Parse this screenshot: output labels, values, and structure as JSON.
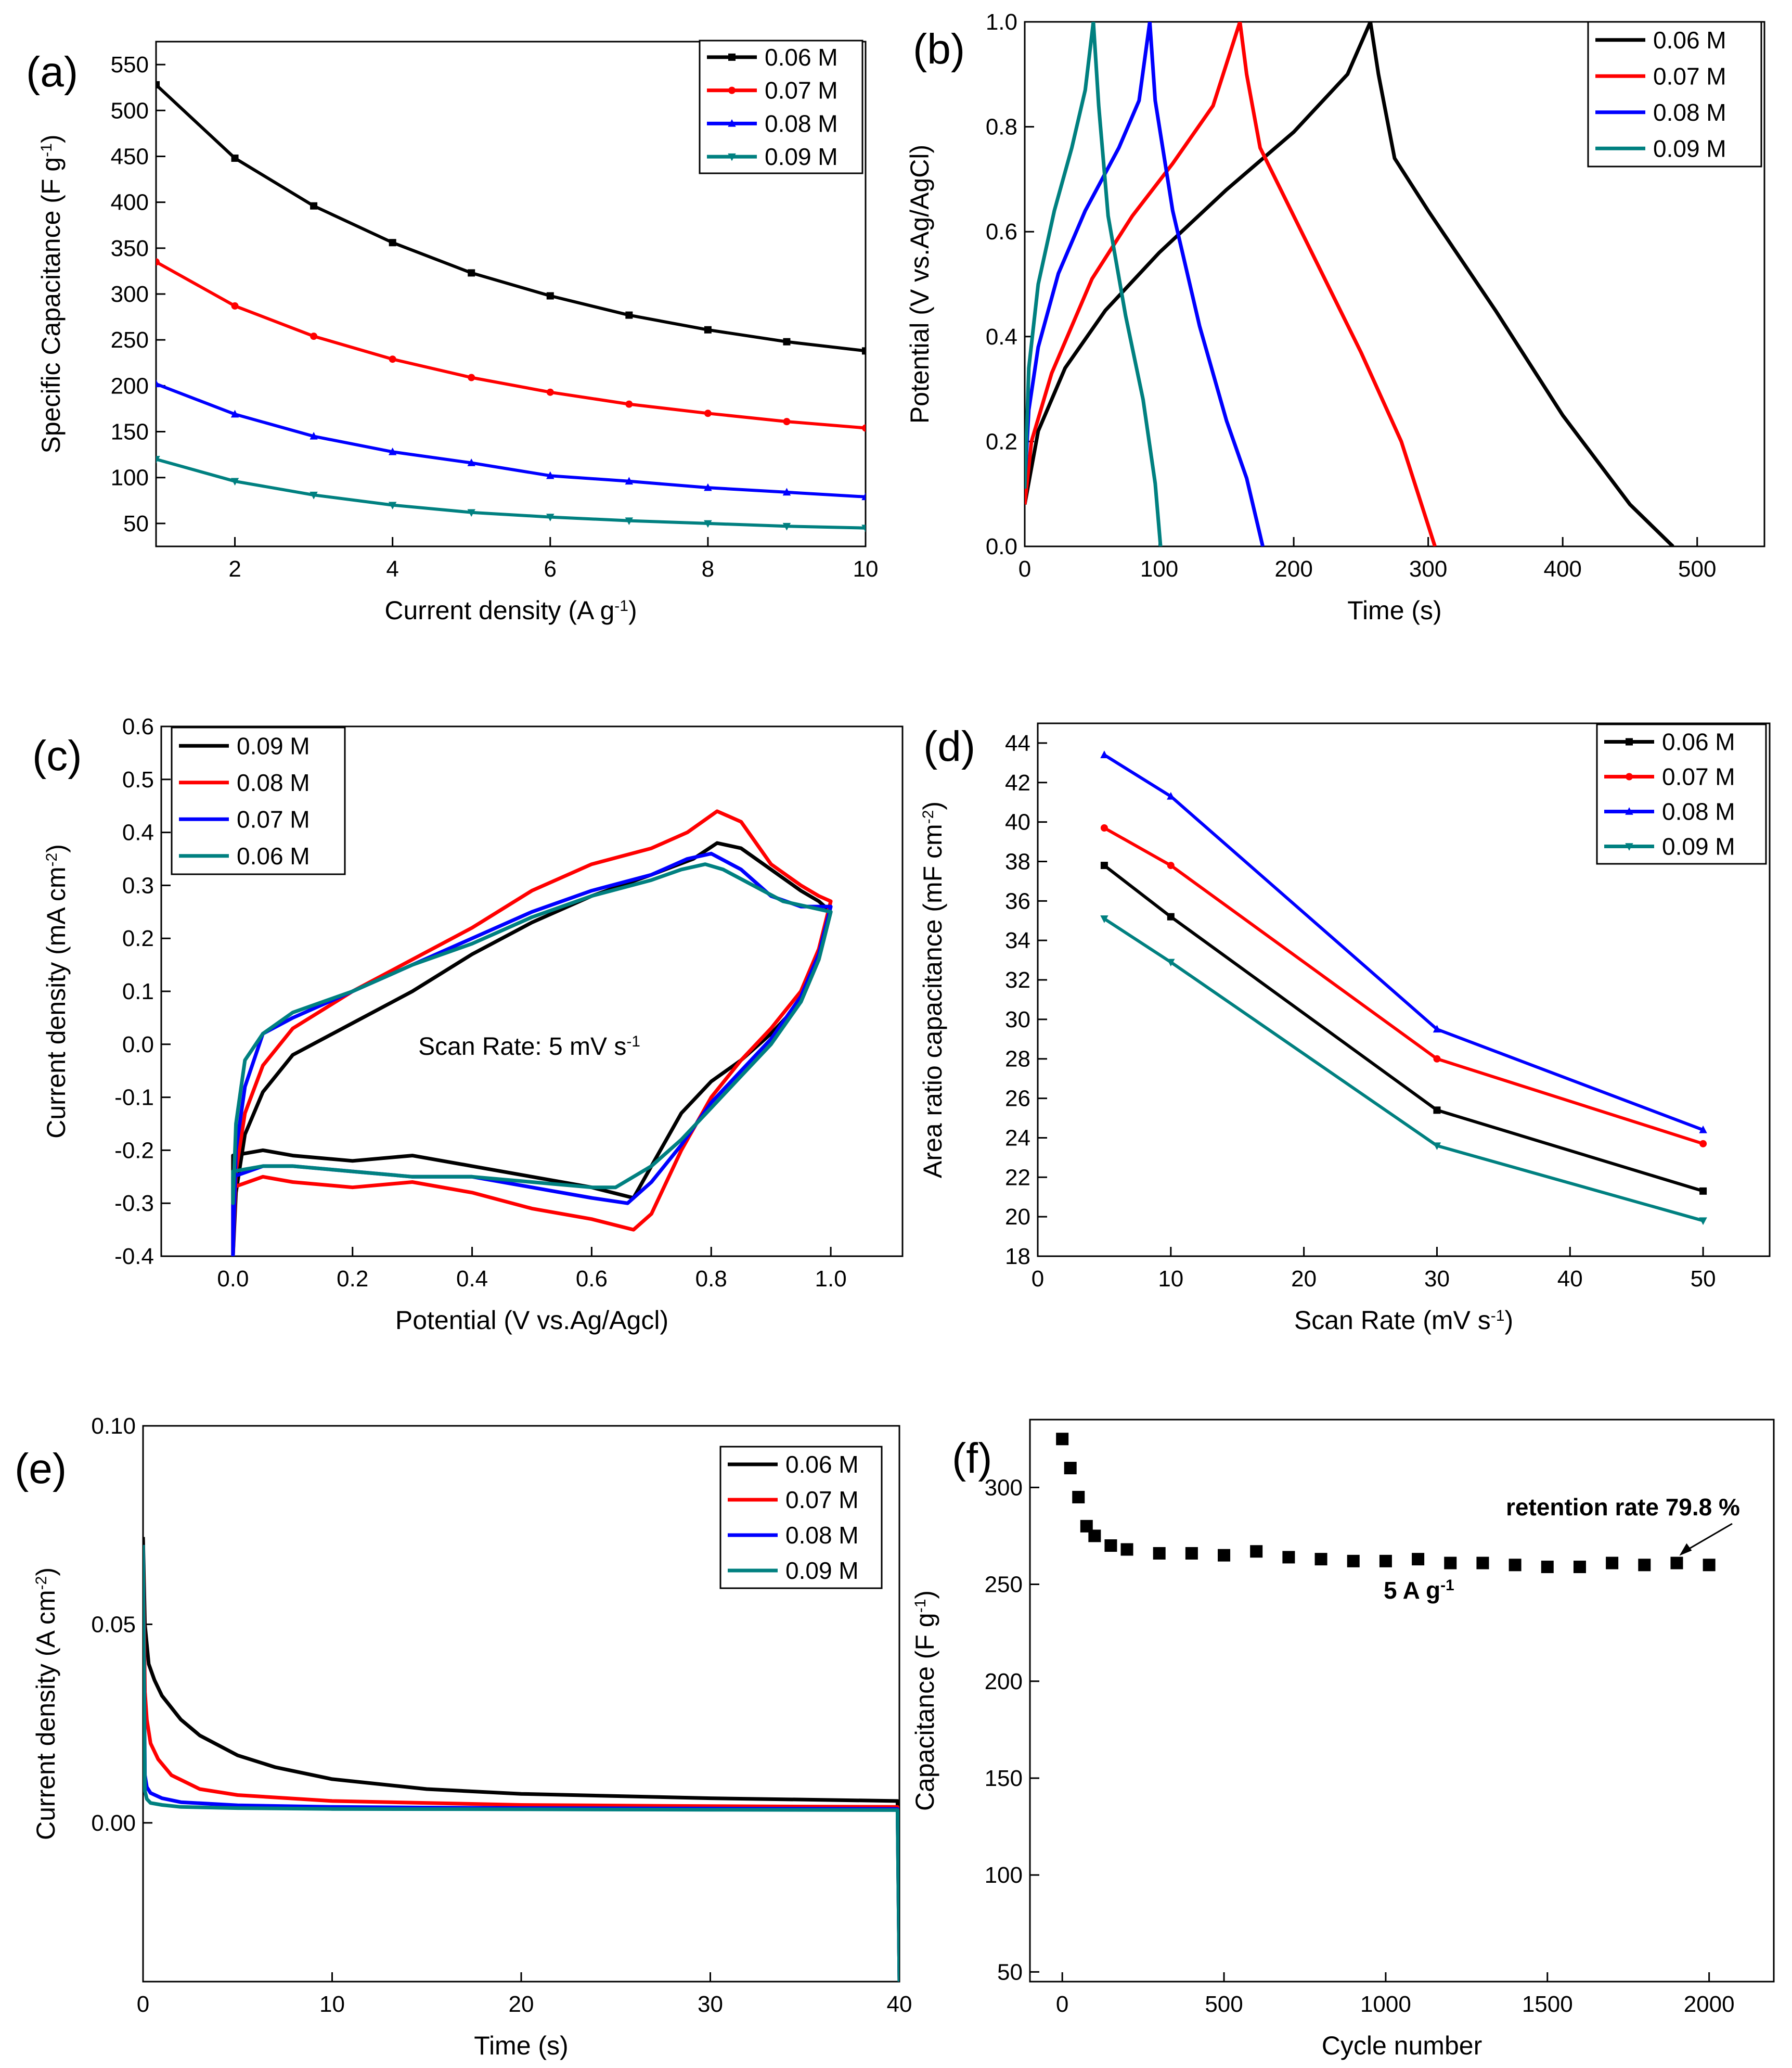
{
  "chart_data": [
    {
      "id": "a",
      "type": "line",
      "panel_label": "(a)",
      "xlabel": "Current density (A g",
      "xlabel_sup": "-1",
      "xlabel_end": ")",
      "ylabel": "Specific Capacitance (F g",
      "ylabel_sup": "-1",
      "ylabel_end": ")",
      "xlim": [
        1,
        10
      ],
      "ylim": [
        25,
        575
      ],
      "xticks": [
        2,
        4,
        6,
        8,
        10
      ],
      "yticks": [
        50,
        100,
        150,
        200,
        250,
        300,
        350,
        400,
        450,
        500,
        550
      ],
      "legend": [
        "0.06 M",
        "0.07 M",
        "0.08 M",
        "0.09 M"
      ],
      "x": [
        1,
        2,
        3,
        4,
        5,
        6,
        7,
        8,
        9,
        10
      ],
      "series": [
        {
          "name": "0.06 M",
          "color": "#000000",
          "marker": "square",
          "values": [
            528,
            448,
            396,
            356,
            323,
            298,
            277,
            261,
            248,
            238
          ]
        },
        {
          "name": "0.07 M",
          "color": "#ff0000",
          "marker": "circle",
          "values": [
            335,
            287,
            254,
            229,
            209,
            193,
            180,
            170,
            161,
            154
          ]
        },
        {
          "name": "0.08 M",
          "color": "#0000ff",
          "marker": "triangle-up",
          "values": [
            202,
            169,
            145,
            128,
            116,
            102,
            96,
            89,
            84,
            79
          ]
        },
        {
          "name": "0.09 M",
          "color": "#008080",
          "marker": "triangle-down",
          "values": [
            120,
            96,
            81,
            70,
            62,
            57,
            53,
            50,
            47,
            45
          ]
        }
      ]
    },
    {
      "id": "b",
      "type": "line",
      "panel_label": "(b)",
      "xlabel": "Time (s)",
      "ylabel": "Potential (V vs.Ag/AgCl)",
      "xlim": [
        0,
        550
      ],
      "ylim": [
        0,
        1.0
      ],
      "xticks": [
        0,
        100,
        200,
        300,
        400,
        500
      ],
      "yticks": [
        0.0,
        0.2,
        0.4,
        0.6,
        0.8,
        1.0
      ],
      "ytick_labels": [
        "0.0",
        "0.2",
        "0.4",
        "0.6",
        "0.8",
        "1.0"
      ],
      "legend": [
        "0.06 M",
        "0.07 M",
        "0.08 M",
        "0.09 M"
      ],
      "series": [
        {
          "name": "0.06 M",
          "color": "#000000",
          "x": [
            0,
            10,
            30,
            60,
            100,
            150,
            200,
            240,
            257,
            263,
            275,
            300,
            350,
            400,
            450,
            482
          ],
          "y": [
            0.08,
            0.22,
            0.34,
            0.45,
            0.56,
            0.68,
            0.79,
            0.9,
            1.0,
            0.9,
            0.74,
            0.64,
            0.45,
            0.25,
            0.08,
            0.0
          ]
        },
        {
          "name": "0.07 M",
          "color": "#ff0000",
          "x": [
            0,
            5,
            20,
            50,
            80,
            110,
            140,
            160,
            165,
            175,
            200,
            250,
            280,
            305
          ],
          "y": [
            0.08,
            0.2,
            0.33,
            0.51,
            0.63,
            0.73,
            0.84,
            1.0,
            0.9,
            0.76,
            0.63,
            0.37,
            0.2,
            0.0
          ]
        },
        {
          "name": "0.08 M",
          "color": "#0000ff",
          "x": [
            0,
            3,
            10,
            25,
            45,
            70,
            85,
            93,
            97,
            110,
            130,
            150,
            165,
            177
          ],
          "y": [
            0.12,
            0.26,
            0.38,
            0.52,
            0.64,
            0.76,
            0.85,
            1.0,
            0.85,
            0.64,
            0.42,
            0.24,
            0.13,
            0.0
          ]
        },
        {
          "name": "0.09 M",
          "color": "#008080",
          "x": [
            0,
            3,
            10,
            22,
            35,
            45,
            51,
            55,
            62,
            75,
            88,
            97,
            101
          ],
          "y": [
            0.11,
            0.34,
            0.5,
            0.64,
            0.76,
            0.87,
            1.0,
            0.84,
            0.63,
            0.44,
            0.28,
            0.12,
            0.0
          ]
        }
      ]
    },
    {
      "id": "c",
      "type": "line",
      "panel_label": "(c)",
      "xlabel": "Potential (V vs.Ag/Agcl)",
      "ylabel": "Current density (mA cm",
      "ylabel_sup": "-2",
      "ylabel_end": ")",
      "xlim": [
        -0.12,
        1.12
      ],
      "ylim": [
        -0.4,
        0.6
      ],
      "xticks": [
        0.0,
        0.2,
        0.4,
        0.6,
        0.8,
        1.0
      ],
      "xtick_labels": [
        "0.0",
        "0.2",
        "0.4",
        "0.6",
        "0.8",
        "1.0"
      ],
      "yticks": [
        -0.4,
        -0.3,
        -0.2,
        -0.1,
        0.0,
        0.1,
        0.2,
        0.3,
        0.4,
        0.5,
        0.6
      ],
      "ytick_labels": [
        "-0.4",
        "-0.3",
        "-0.2",
        "-0.1",
        "0.0",
        "0.1",
        "0.2",
        "0.3",
        "0.4",
        "0.5",
        "0.6"
      ],
      "annotation": "Scan Rate: 5 mV s",
      "annotation_sup": "-1",
      "legend": [
        "0.09 M",
        "0.08 M",
        "0.07 M",
        "0.06 M"
      ],
      "series": [
        {
          "name": "0.09 M",
          "color": "#000000",
          "x": [
            0.0,
            0.005,
            0.02,
            0.05,
            0.1,
            0.2,
            0.3,
            0.4,
            0.5,
            0.6,
            0.7,
            0.77,
            0.81,
            0.85,
            0.9,
            0.95,
            0.98,
            1.0,
            0.98,
            0.95,
            0.9,
            0.85,
            0.8,
            0.75,
            0.7,
            0.67,
            0.6,
            0.5,
            0.4,
            0.3,
            0.2,
            0.1,
            0.05,
            0.0
          ],
          "y": [
            -0.4,
            -0.28,
            -0.17,
            -0.09,
            -0.02,
            0.04,
            0.1,
            0.17,
            0.23,
            0.28,
            0.32,
            0.35,
            0.38,
            0.37,
            0.33,
            0.29,
            0.27,
            0.25,
            0.16,
            0.08,
            0.02,
            -0.03,
            -0.07,
            -0.13,
            -0.23,
            -0.29,
            -0.27,
            -0.25,
            -0.23,
            -0.21,
            -0.22,
            -0.21,
            -0.2,
            -0.21
          ]
        },
        {
          "name": "0.08 M",
          "color": "#ff0000",
          "x": [
            0.0,
            0.005,
            0.02,
            0.05,
            0.1,
            0.2,
            0.3,
            0.4,
            0.5,
            0.6,
            0.7,
            0.76,
            0.81,
            0.85,
            0.9,
            0.95,
            0.98,
            1.0,
            0.98,
            0.95,
            0.9,
            0.85,
            0.8,
            0.75,
            0.7,
            0.67,
            0.6,
            0.5,
            0.4,
            0.3,
            0.2,
            0.1,
            0.05,
            0.0
          ],
          "y": [
            -0.4,
            -0.24,
            -0.13,
            -0.04,
            0.03,
            0.1,
            0.16,
            0.22,
            0.29,
            0.34,
            0.37,
            0.4,
            0.44,
            0.42,
            0.34,
            0.3,
            0.28,
            0.27,
            0.18,
            0.1,
            0.03,
            -0.03,
            -0.1,
            -0.2,
            -0.32,
            -0.35,
            -0.33,
            -0.31,
            -0.28,
            -0.26,
            -0.27,
            -0.26,
            -0.25,
            -0.27
          ]
        },
        {
          "name": "0.07 M",
          "color": "#0000ff",
          "x": [
            0.0,
            0.005,
            0.02,
            0.05,
            0.1,
            0.2,
            0.3,
            0.4,
            0.5,
            0.6,
            0.7,
            0.76,
            0.8,
            0.85,
            0.9,
            0.95,
            0.98,
            1.0,
            0.98,
            0.95,
            0.9,
            0.85,
            0.8,
            0.75,
            0.7,
            0.66,
            0.6,
            0.5,
            0.4,
            0.3,
            0.2,
            0.1,
            0.05,
            0.0
          ],
          "y": [
            -0.4,
            -0.2,
            -0.08,
            0.02,
            0.05,
            0.1,
            0.15,
            0.2,
            0.25,
            0.29,
            0.32,
            0.35,
            0.36,
            0.33,
            0.28,
            0.26,
            0.26,
            0.26,
            0.17,
            0.09,
            0.01,
            -0.05,
            -0.11,
            -0.19,
            -0.26,
            -0.3,
            -0.29,
            -0.27,
            -0.25,
            -0.25,
            -0.24,
            -0.23,
            -0.23,
            -0.25
          ]
        },
        {
          "name": "0.06 M",
          "color": "#008080",
          "x": [
            0.0,
            0.005,
            0.02,
            0.05,
            0.1,
            0.2,
            0.3,
            0.4,
            0.5,
            0.6,
            0.7,
            0.75,
            0.79,
            0.82,
            0.87,
            0.92,
            0.96,
            1.0,
            0.98,
            0.95,
            0.9,
            0.85,
            0.8,
            0.75,
            0.7,
            0.64,
            0.6,
            0.5,
            0.4,
            0.3,
            0.2,
            0.1,
            0.05,
            0.0
          ],
          "y": [
            -0.3,
            -0.15,
            -0.03,
            0.02,
            0.06,
            0.1,
            0.15,
            0.19,
            0.24,
            0.28,
            0.31,
            0.33,
            0.34,
            0.33,
            0.3,
            0.27,
            0.26,
            0.25,
            0.16,
            0.08,
            0.0,
            -0.06,
            -0.12,
            -0.18,
            -0.23,
            -0.27,
            -0.27,
            -0.26,
            -0.25,
            -0.25,
            -0.24,
            -0.23,
            -0.23,
            -0.24
          ]
        }
      ]
    },
    {
      "id": "d",
      "type": "line",
      "panel_label": "(d)",
      "xlabel": "Scan Rate (mV s",
      "xlabel_sup": "-1",
      "xlabel_end": ")",
      "ylabel": "Area ratio capacitance  (mF cm",
      "ylabel_sup": "-2",
      "ylabel_end": ")",
      "xlim": [
        0,
        55
      ],
      "ylim": [
        18,
        45
      ],
      "xticks": [
        0,
        10,
        20,
        30,
        40,
        50
      ],
      "yticks": [
        18,
        20,
        22,
        24,
        26,
        28,
        30,
        32,
        34,
        36,
        38,
        40,
        42,
        44
      ],
      "legend": [
        "0.06 M",
        "0.07 M",
        "0.08 M",
        "0.09 M"
      ],
      "x": [
        5,
        10,
        30,
        50
      ],
      "series": [
        {
          "name": "0.06 M",
          "color": "#000000",
          "marker": "square",
          "values": [
            37.8,
            35.2,
            25.4,
            21.3
          ]
        },
        {
          "name": "0.07 M",
          "color": "#ff0000",
          "marker": "circle",
          "values": [
            39.7,
            37.8,
            28.0,
            23.7
          ]
        },
        {
          "name": "0.08 M",
          "color": "#0000ff",
          "marker": "triangle-up",
          "values": [
            43.4,
            41.3,
            29.5,
            24.4
          ]
        },
        {
          "name": "0.09 M",
          "color": "#008080",
          "marker": "triangle-down",
          "values": [
            35.1,
            32.9,
            23.6,
            19.8
          ]
        }
      ]
    },
    {
      "id": "e",
      "type": "line",
      "panel_label": "(e)",
      "xlabel": "Time (s)",
      "ylabel": "Current density (A cm",
      "ylabel_sup": "-2",
      "ylabel_end": ")",
      "xlim": [
        0,
        40
      ],
      "ylim": [
        -0.04,
        0.1
      ],
      "xticks": [
        0,
        10,
        20,
        30,
        40
      ],
      "yticks": [
        0.0,
        0.05,
        0.1
      ],
      "ytick_labels": [
        "0.00",
        "0.05",
        "0.10"
      ],
      "legend": [
        "0.06 M",
        "0.07 M",
        "0.08 M",
        "0.09 M"
      ],
      "series": [
        {
          "name": "0.06 M",
          "color": "#000000",
          "x": [
            0,
            0.1,
            0.3,
            0.6,
            1,
            2,
            3,
            5,
            7,
            10,
            15,
            20,
            30,
            39.9,
            40
          ],
          "y": [
            0.072,
            0.05,
            0.04,
            0.036,
            0.032,
            0.026,
            0.022,
            0.017,
            0.014,
            0.011,
            0.0085,
            0.0073,
            0.0062,
            0.0055,
            -0.04
          ]
        },
        {
          "name": "0.07 M",
          "color": "#ff0000",
          "x": [
            0,
            0.1,
            0.2,
            0.4,
            0.8,
            1.5,
            3,
            5,
            10,
            20,
            30,
            39.9,
            40
          ],
          "y": [
            0.07,
            0.033,
            0.026,
            0.02,
            0.016,
            0.012,
            0.0085,
            0.007,
            0.0055,
            0.0045,
            0.0042,
            0.004,
            -0.04
          ]
        },
        {
          "name": "0.08 M",
          "color": "#0000ff",
          "x": [
            0,
            0.1,
            0.2,
            0.4,
            1,
            2,
            5,
            10,
            20,
            30,
            39.9,
            40
          ],
          "y": [
            0.07,
            0.012,
            0.009,
            0.0075,
            0.0062,
            0.0052,
            0.0044,
            0.004,
            0.0037,
            0.0036,
            0.0035,
            -0.04
          ]
        },
        {
          "name": "0.09 M",
          "color": "#008080",
          "x": [
            0,
            0.1,
            0.2,
            0.4,
            1,
            2,
            5,
            10,
            20,
            30,
            39.9,
            40
          ],
          "y": [
            0.07,
            0.008,
            0.006,
            0.005,
            0.0045,
            0.004,
            0.0037,
            0.0035,
            0.0034,
            0.0033,
            0.0032,
            -0.04
          ]
        }
      ]
    },
    {
      "id": "f",
      "type": "scatter",
      "panel_label": "(f)",
      "xlabel": "Cycle number",
      "ylabel": "Capacitance (F g",
      "ylabel_sup": "-1",
      "ylabel_end": ")",
      "xlim": [
        -100,
        2200
      ],
      "ylim": [
        45,
        335
      ],
      "xticks": [
        0,
        500,
        1000,
        1500,
        2000
      ],
      "yticks": [
        50,
        100,
        150,
        200,
        250,
        300
      ],
      "annotation_retention": "retention rate 79.8 %",
      "annotation_rate": "5 A g",
      "annotation_rate_sup": "-1",
      "series": [
        {
          "name": "capacitance",
          "color": "#000000",
          "marker": "square",
          "x": [
            0,
            25,
            50,
            75,
            100,
            150,
            200,
            300,
            400,
            500,
            600,
            700,
            800,
            900,
            1000,
            1100,
            1200,
            1300,
            1400,
            1500,
            1600,
            1700,
            1800,
            1900,
            2000
          ],
          "y": [
            325,
            310,
            295,
            280,
            275,
            270,
            268,
            266,
            266,
            265,
            267,
            264,
            263,
            262,
            262,
            263,
            261,
            261,
            260,
            259,
            259,
            261,
            260,
            261,
            260
          ]
        }
      ]
    }
  ]
}
